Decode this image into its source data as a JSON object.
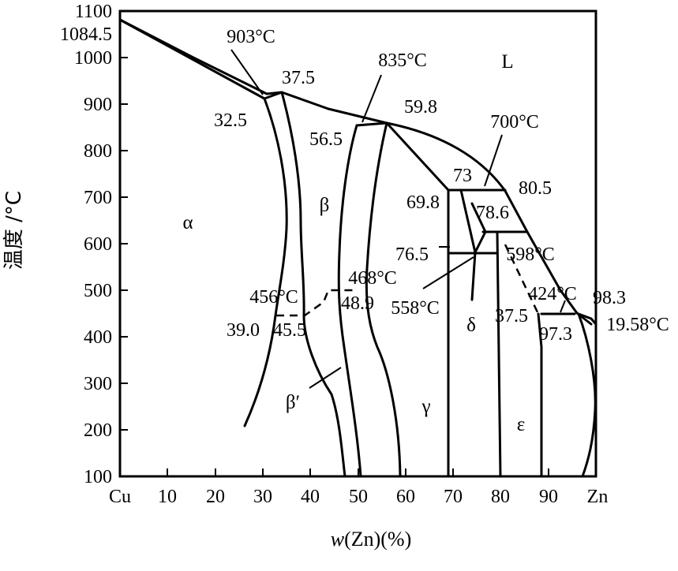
{
  "axes": {
    "ylabel": "温度 /°C",
    "xlabel_var": "w",
    "xlabel_rest": "(Zn)(%)",
    "y_ticks": [
      "100",
      "200",
      "300",
      "400",
      "500",
      "600",
      "700",
      "800",
      "900",
      "1000",
      "1100"
    ],
    "x_ticks": [
      "Cu",
      "10",
      "20",
      "30",
      "40",
      "50",
      "60",
      "70",
      "80",
      "90",
      "Zn"
    ],
    "xlim": [
      0,
      100
    ],
    "ylim": [
      100,
      1100
    ]
  },
  "phases": {
    "L": "L",
    "alpha": "α",
    "beta": "β",
    "beta_prime": "β′",
    "gamma": "γ",
    "delta": "δ",
    "epsilon": "ε"
  },
  "annotations": {
    "cu_melt": "1084.5",
    "t903": "903°C",
    "c37_5": "37.5",
    "c32_5": "32.5",
    "t835": "835°C",
    "c59_8": "59.8",
    "c56_5": "56.5",
    "t700": "700°C",
    "c73": "73",
    "c80_5": "80.5",
    "c69_8": "69.8",
    "c78_6": "78.6",
    "c76_5": "76.5",
    "t598": "598°C",
    "t558": "558°C",
    "t468": "468°C",
    "c48_9": "48.9",
    "t456": "456°C",
    "c39_0": "39.0",
    "c45_5": "45.5",
    "t424": "424°C",
    "c98_3": "98.3",
    "c37_5b": "37.5",
    "c97_3": "97.3",
    "t419": "19.58°C"
  }
}
